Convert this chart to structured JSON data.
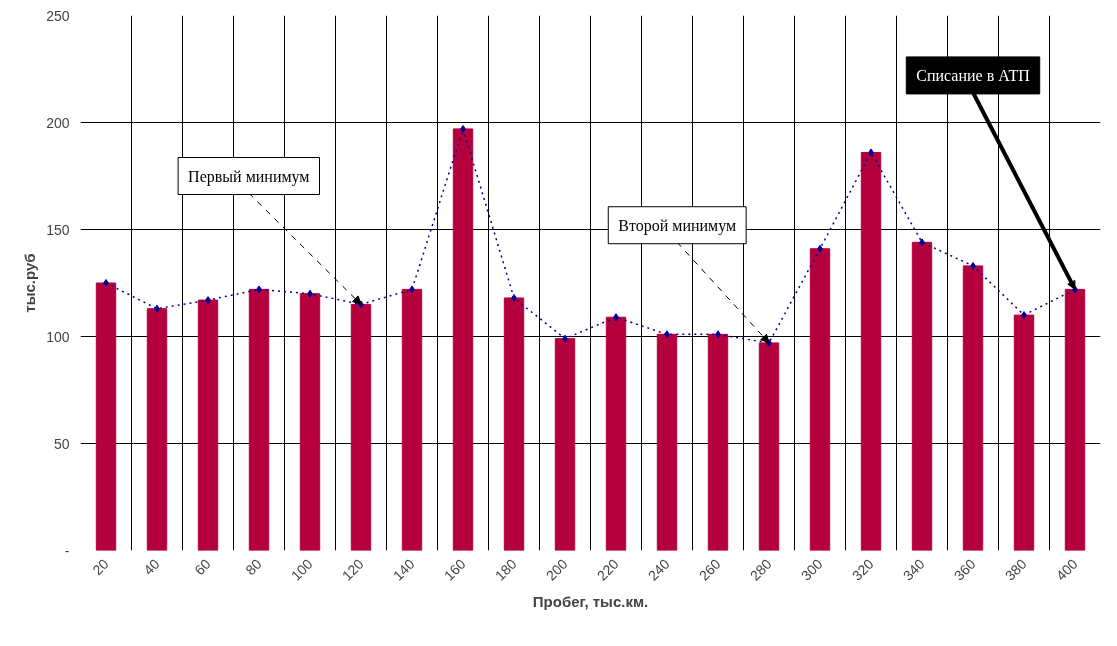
{
  "chart_data": {
    "type": "bar",
    "xlabel": "Пробег, тыс.км.",
    "ylabel": "тыс.руб",
    "categories": [
      "20",
      "40",
      "60",
      "80",
      "100",
      "120",
      "140",
      "160",
      "180",
      "200",
      "220",
      "240",
      "260",
      "280",
      "300",
      "320",
      "340",
      "360",
      "380",
      "400"
    ],
    "series": [
      {
        "color": "#b5003e",
        "values": [
          125,
          113,
          117,
          122,
          120,
          115,
          122,
          197,
          118,
          99,
          109,
          101,
          101,
          97,
          141,
          186,
          144,
          133,
          110,
          122
        ]
      },
      {
        "type": "line",
        "color": "#000099",
        "marker": "diamond",
        "line_style": "dotted",
        "values": [
          125,
          113,
          117,
          122,
          120,
          115,
          122,
          197,
          118,
          99,
          109,
          101,
          101,
          97,
          141,
          186,
          144,
          133,
          110,
          122
        ]
      }
    ],
    "ylim": [
      0,
      250
    ],
    "yticks": [
      {
        "value": 0,
        "label": "-"
      },
      50,
      100,
      150,
      200,
      250
    ],
    "grid": true,
    "annotations": [
      {
        "text": "Первый минимум",
        "x": "120",
        "y": 115
      },
      {
        "text": "Второй минимум",
        "x": "280",
        "y": 97
      },
      {
        "text": "Списание в АТП",
        "x": "400",
        "y": 122
      }
    ]
  }
}
